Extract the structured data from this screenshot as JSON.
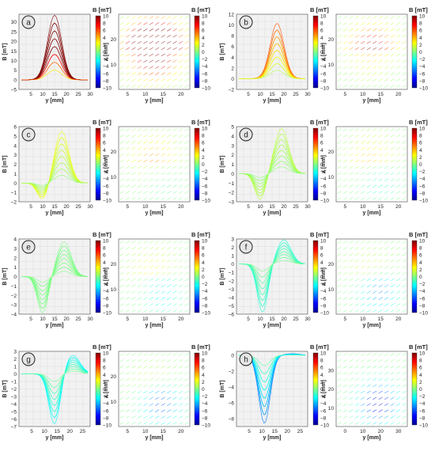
{
  "colorbar": {
    "label": "B [mT]",
    "ticks": [
      "10",
      "8",
      "6",
      "4",
      "2",
      "0",
      "−2",
      "−4",
      "−6",
      "−8",
      "−10"
    ],
    "colors": [
      "#00008f",
      "#0000ff",
      "#0080ff",
      "#00ffff",
      "#80ff80",
      "#ffff00",
      "#ff8000",
      "#ff0000",
      "#800000"
    ]
  },
  "chart_data": [
    {
      "panel": "a",
      "type": "surface-profile",
      "xlabel": "y [mm]",
      "ylabel": "B [mT]",
      "xticks": [
        "5",
        "10",
        "15",
        "20",
        "25",
        "30"
      ],
      "xlim": [
        0,
        30
      ],
      "yticks": [
        "30",
        "25",
        "20",
        "15",
        "10",
        "5",
        "0",
        "−5"
      ],
      "ylim": [
        -5,
        34
      ],
      "peak": {
        "y_mm": 15,
        "B_mT": 33.5
      },
      "trough": {
        "y_mm": 15,
        "B_mT": 0
      },
      "map": {
        "type": "map",
        "xlabel": "y [mm]",
        "ylabel": "x [mm]",
        "xticks": [
          "5",
          "10",
          "15",
          "20"
        ],
        "yticks": [
          "20",
          "10"
        ]
      }
    },
    {
      "panel": "b",
      "type": "surface-profile",
      "xlabel": "y [mm]",
      "ylabel": "B [mT]",
      "xticks": [
        "5",
        "10",
        "15",
        "20",
        "25",
        "30"
      ],
      "xlim": [
        0,
        30
      ],
      "yticks": [
        "12",
        "10",
        "8",
        "6",
        "4",
        "2",
        "0",
        "−2"
      ],
      "ylim": [
        -2,
        12
      ],
      "peak": {
        "y_mm": 17,
        "B_mT": 10.5
      },
      "trough": {
        "y_mm": 14,
        "B_mT": -0.5
      },
      "map": {
        "type": "map",
        "xlabel": "y [mm]",
        "ylabel": "x [mm]",
        "xticks": [
          "5",
          "10",
          "15",
          "20"
        ],
        "yticks": [
          "20",
          "10"
        ]
      }
    },
    {
      "panel": "c",
      "type": "surface-profile",
      "xlabel": "y [mm]",
      "ylabel": "B [mT]",
      "xticks": [
        "5",
        "10",
        "15",
        "20",
        "25",
        "30"
      ],
      "xlim": [
        0,
        30
      ],
      "yticks": [
        "6",
        "5",
        "4",
        "3",
        "2",
        "1",
        "0",
        "−1",
        "−2"
      ],
      "ylim": [
        -2,
        6
      ],
      "peak": {
        "y_mm": 18,
        "B_mT": 5.5
      },
      "trough": {
        "y_mm": 10,
        "B_mT": -1.8
      },
      "map": {
        "type": "map",
        "xlabel": "y [mm]",
        "ylabel": "x [mm]",
        "xticks": [
          "5",
          "10",
          "15",
          "20"
        ],
        "yticks": [
          "20",
          "10"
        ]
      }
    },
    {
      "panel": "d",
      "type": "surface-profile",
      "xlabel": "y [mm]",
      "ylabel": "B [mT]",
      "xticks": [
        "5",
        "10",
        "15",
        "20",
        "25",
        "30"
      ],
      "xlim": [
        0,
        30
      ],
      "yticks": [
        "5",
        "4",
        "3",
        "2",
        "1",
        "0",
        "−1",
        "−2",
        "−3"
      ],
      "ylim": [
        -3,
        5
      ],
      "peak": {
        "y_mm": 19,
        "B_mT": 4.8
      },
      "trough": {
        "y_mm": 10,
        "B_mT": -2.8
      },
      "map": {
        "type": "map",
        "xlabel": "y [mm]",
        "ylabel": "x [mm]",
        "xticks": [
          "5",
          "10",
          "15",
          "20"
        ],
        "yticks": [
          "20",
          "10"
        ]
      }
    },
    {
      "panel": "e",
      "type": "surface-profile",
      "xlabel": "y [mm]",
      "ylabel": "B [mT]",
      "xticks": [
        "5",
        "10",
        "15",
        "20",
        "25",
        "30"
      ],
      "xlim": [
        0,
        30
      ],
      "yticks": [
        "4",
        "3",
        "2",
        "1",
        "0",
        "−1",
        "−2",
        "−3",
        "−4"
      ],
      "ylim": [
        -4,
        4
      ],
      "peak": {
        "y_mm": 19,
        "B_mT": 3.7
      },
      "trough": {
        "y_mm": 10,
        "B_mT": -3.9
      },
      "map": {
        "type": "map",
        "xlabel": "y [mm]",
        "ylabel": "x [mm]",
        "xticks": [
          "5",
          "10",
          "15",
          "20"
        ],
        "yticks": [
          "20",
          "10"
        ]
      }
    },
    {
      "panel": "f",
      "type": "surface-profile",
      "xlabel": "y [mm]",
      "ylabel": "B [mT]",
      "xticks": [
        "5",
        "10",
        "15",
        "20",
        "25",
        "30"
      ],
      "xlim": [
        0,
        30
      ],
      "yticks": [
        "3",
        "2",
        "1",
        "0",
        "−1",
        "−2",
        "−3",
        "−4",
        "−5",
        "−6"
      ],
      "ylim": [
        -6,
        3
      ],
      "peak": {
        "y_mm": 20,
        "B_mT": 2.9
      },
      "trough": {
        "y_mm": 11,
        "B_mT": -5.8
      },
      "map": {
        "type": "map",
        "xlabel": "y [mm]",
        "ylabel": "x [mm]",
        "xticks": [
          "5",
          "10",
          "15",
          "20"
        ],
        "yticks": [
          "20",
          "10"
        ]
      }
    },
    {
      "panel": "g",
      "type": "surface-profile",
      "xlabel": "y [mm]",
      "ylabel": "B [mT]",
      "xticks": [
        "5",
        "10",
        "15",
        "20",
        "25"
      ],
      "xlim": [
        0,
        28
      ],
      "yticks": [
        "3",
        "2",
        "1",
        "0",
        "−1",
        "−2",
        "−3",
        "−4",
        "−5",
        "−6",
        "−7"
      ],
      "ylim": [
        -7,
        3
      ],
      "peak": {
        "y_mm": 21,
        "B_mT": 2.5
      },
      "trough": {
        "y_mm": 14,
        "B_mT": -6.8
      },
      "map": {
        "type": "map",
        "xlabel": "y [mm]",
        "ylabel": "x [mm]",
        "xticks": [
          "5",
          "10",
          "15",
          "20"
        ],
        "yticks": [
          "20",
          "10"
        ]
      }
    },
    {
      "panel": "h",
      "type": "surface-profile",
      "xlabel": "y [mm]",
      "ylabel": "B [mT]",
      "xticks": [
        "5",
        "10",
        "15",
        "20",
        "25"
      ],
      "xlim": [
        0,
        28
      ],
      "yticks": [
        "0",
        "−2",
        "−4",
        "−6",
        "−8"
      ],
      "ylim": [
        -9,
        0.5
      ],
      "peak": {
        "y_mm": 22,
        "B_mT": 0.2
      },
      "trough": {
        "y_mm": 11,
        "B_mT": -8.6
      },
      "map": {
        "type": "map",
        "xlabel": "y [mm]",
        "ylabel": "x [mm]",
        "xticks": [
          "0",
          "10",
          "20",
          "30"
        ],
        "yticks": [
          "30",
          "20",
          "10"
        ]
      }
    }
  ]
}
